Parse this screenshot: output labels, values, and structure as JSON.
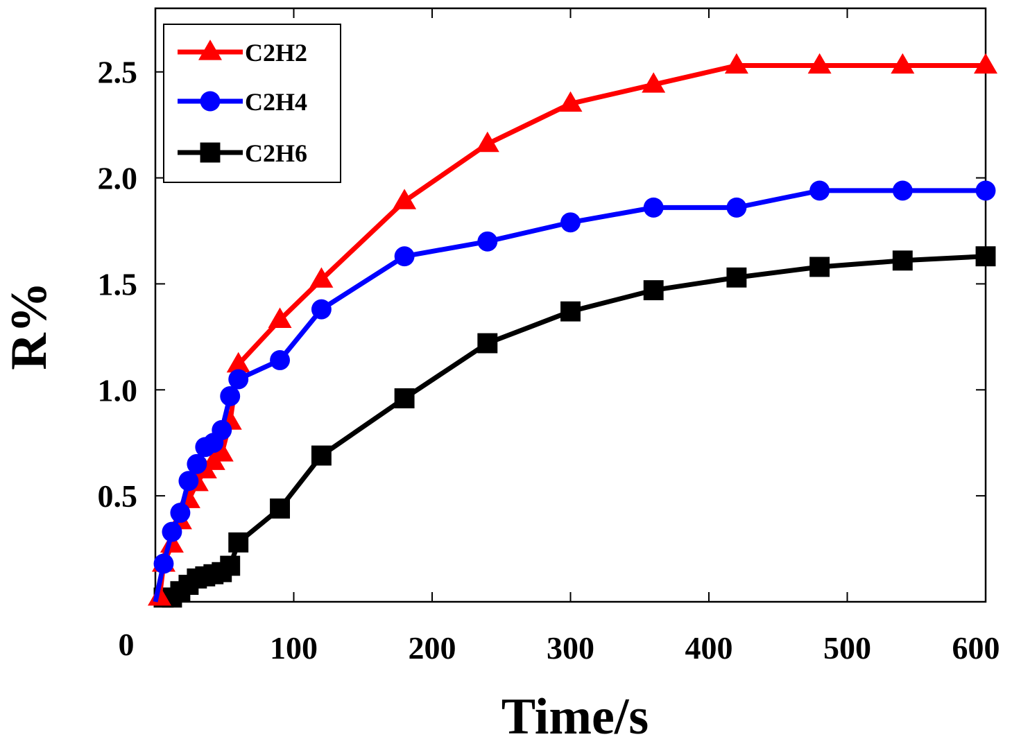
{
  "chart_data": {
    "type": "line",
    "title": "",
    "xlabel": "Time/s",
    "ylabel": "R%",
    "xlim": [
      0,
      600
    ],
    "ylim": [
      0,
      2.8
    ],
    "x_ticks": [
      0,
      100,
      200,
      300,
      400,
      500,
      600
    ],
    "x_tick_labels": [
      "0",
      "100",
      "200",
      "300",
      "400",
      "500",
      "600"
    ],
    "y_ticks": [
      0.5,
      1.0,
      1.5,
      2.0,
      2.5
    ],
    "y_tick_labels": [
      "0.5",
      "1.0",
      "1.5",
      "2.0",
      "2.5"
    ],
    "legend_position": "top-left",
    "grid": false,
    "series": [
      {
        "name": "C2H2",
        "color": "#ff0000",
        "marker": "triangle",
        "x": [
          0,
          3,
          6,
          12,
          18,
          24,
          30,
          36,
          42,
          48,
          54,
          60,
          90,
          120,
          180,
          240,
          300,
          360,
          420,
          480,
          540,
          600
        ],
        "y": [
          0.0,
          0.02,
          0.18,
          0.27,
          0.38,
          0.48,
          0.56,
          0.62,
          0.66,
          0.7,
          0.85,
          1.12,
          1.33,
          1.52,
          1.89,
          2.16,
          2.35,
          2.44,
          2.53,
          2.53,
          2.53,
          2.53
        ]
      },
      {
        "name": "C2H4",
        "color": "#0000ff",
        "marker": "circle",
        "x": [
          0,
          6,
          12,
          18,
          24,
          30,
          36,
          42,
          48,
          54,
          60,
          90,
          120,
          180,
          240,
          300,
          360,
          420,
          480,
          540,
          600
        ],
        "y": [
          0.0,
          0.18,
          0.33,
          0.42,
          0.57,
          0.65,
          0.73,
          0.75,
          0.81,
          0.97,
          1.05,
          1.14,
          1.38,
          1.63,
          1.7,
          1.79,
          1.86,
          1.86,
          1.94,
          1.94,
          1.94
        ]
      },
      {
        "name": "C2H6",
        "color": "#000000",
        "marker": "square",
        "x": [
          0,
          6,
          12,
          18,
          24,
          30,
          36,
          42,
          48,
          54,
          60,
          90,
          120,
          180,
          240,
          300,
          360,
          420,
          480,
          540,
          600
        ],
        "y": [
          0.0,
          0.02,
          0.02,
          0.05,
          0.08,
          0.11,
          0.12,
          0.13,
          0.14,
          0.17,
          0.28,
          0.44,
          0.69,
          0.96,
          1.22,
          1.37,
          1.47,
          1.53,
          1.58,
          1.61,
          1.63
        ]
      }
    ]
  }
}
